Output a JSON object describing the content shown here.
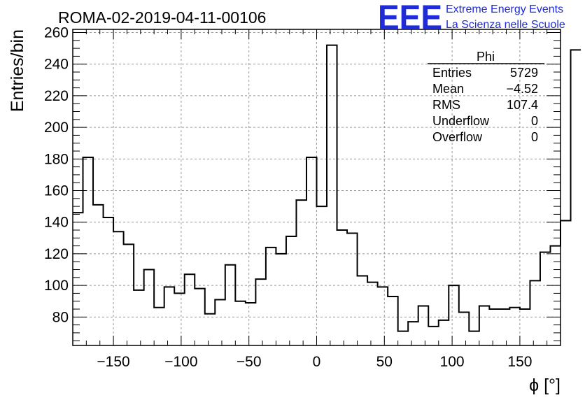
{
  "logo": {
    "mark": "EEE",
    "line1": "Extreme Energy Events",
    "line2": "La Scienza nelle Scuole",
    "color": "#1f2bd6"
  },
  "chart_data": {
    "type": "histogram",
    "title": "ROMA-02-2019-04-11-00106",
    "xlabel": "ϕ [°]",
    "ylabel": "Entries/bin",
    "xlim": [
      -180,
      180
    ],
    "ylim": [
      62,
      262
    ],
    "xticks": [
      -150,
      -100,
      -50,
      0,
      50,
      100,
      150
    ],
    "yticks": [
      80,
      100,
      120,
      140,
      160,
      180,
      200,
      220,
      240,
      260
    ],
    "grid": true,
    "bin_width": 7.5,
    "bin_edges_start": -180,
    "values": [
      146,
      181,
      151,
      143,
      134,
      126,
      97,
      110,
      86,
      99,
      95,
      107,
      98,
      82,
      91,
      113,
      90,
      89,
      104,
      124,
      120,
      131,
      154,
      181,
      150,
      252,
      135,
      133,
      106,
      102,
      99,
      93,
      71,
      77,
      87,
      74,
      78,
      100,
      83,
      71,
      87,
      85,
      85,
      86,
      85,
      103,
      121,
      125,
      141,
      249
    ],
    "line_color": "#000000",
    "stats": {
      "name": "Phi",
      "rows": [
        {
          "label": "Entries",
          "value": "5729"
        },
        {
          "label": "Mean",
          "value": "−4.52"
        },
        {
          "label": "RMS",
          "value": "107.4"
        },
        {
          "label": "Underflow",
          "value": "0"
        },
        {
          "label": "Overflow",
          "value": "0"
        }
      ]
    }
  }
}
